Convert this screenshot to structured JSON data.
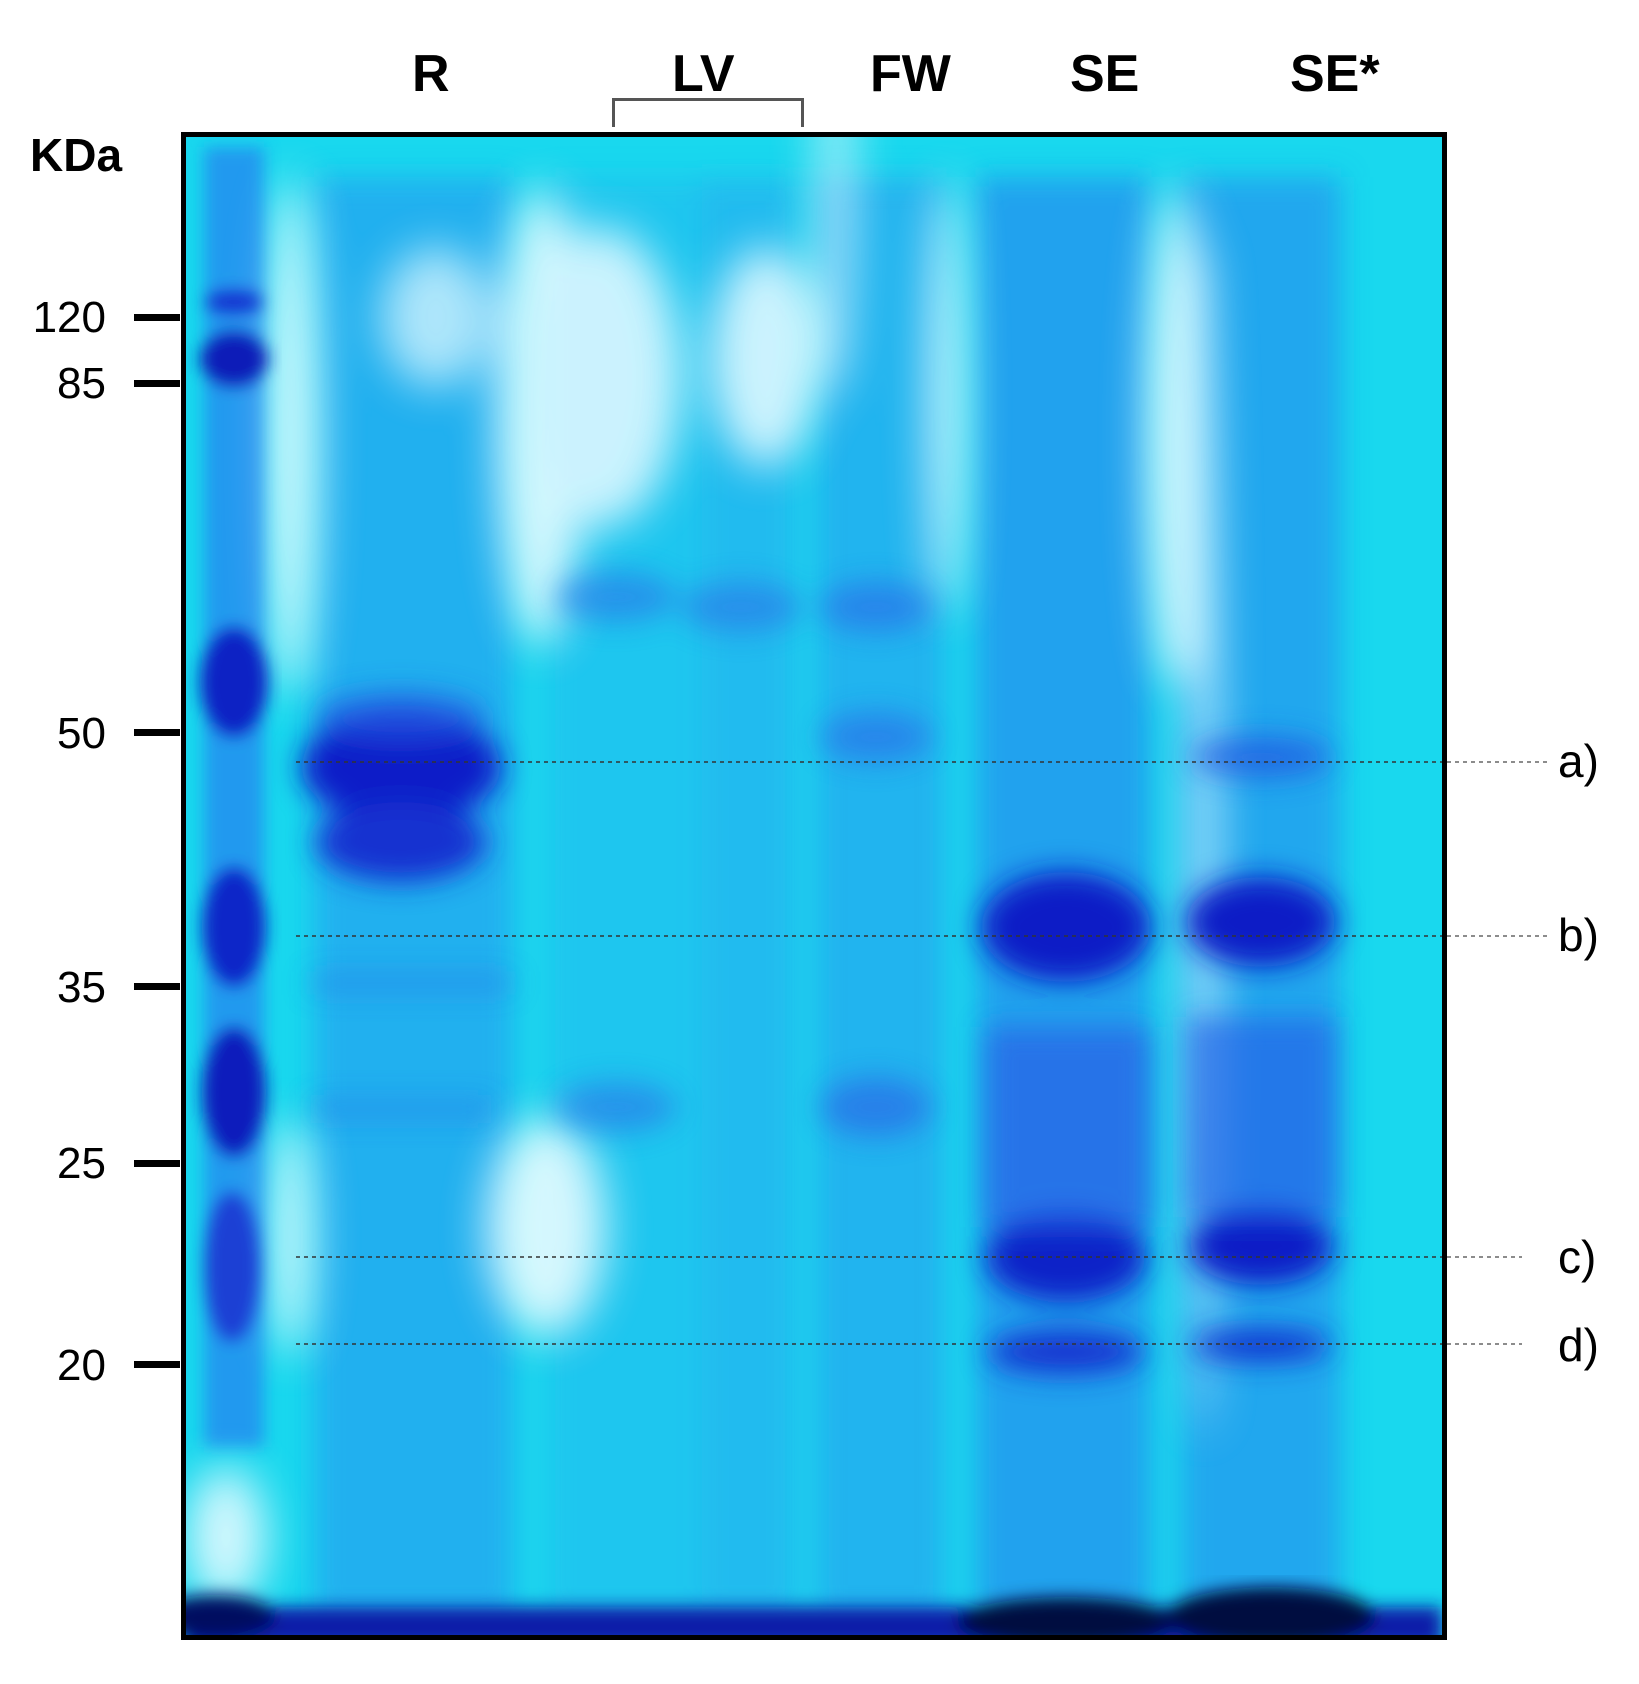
{
  "unit_label": "KDa",
  "lane_labels": [
    "R",
    "LV",
    "FW",
    "SE",
    "SE*"
  ],
  "markers": [
    "120",
    "85",
    "50",
    "35",
    "25",
    "20"
  ],
  "band_labels": [
    "a)",
    "b)",
    "c)",
    "d)"
  ],
  "colors": {
    "gel_base": "#19d8ee",
    "band_dark": "#0a1fc8",
    "band_mid": "#2f6fe6",
    "smear_light": "#e8fbff",
    "frame": "#000000"
  }
}
